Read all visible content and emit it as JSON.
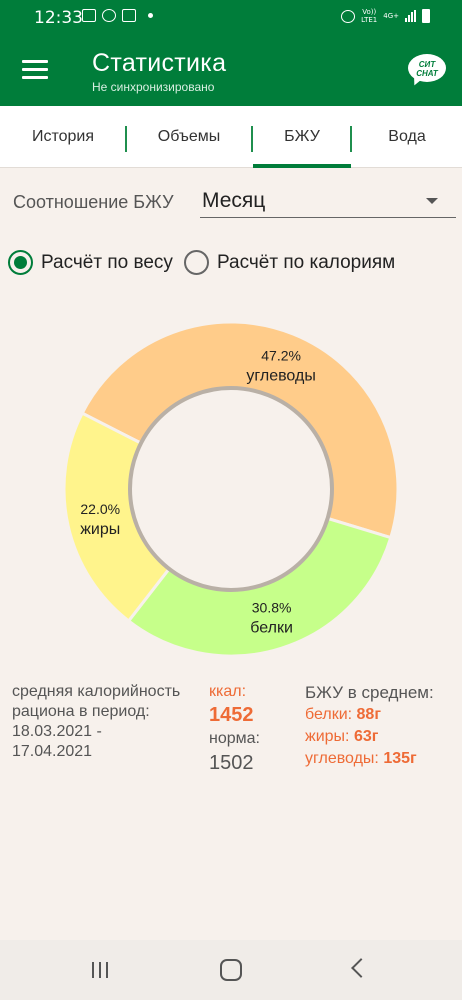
{
  "status_bar": {
    "time": "12:33",
    "network_line1": "Vo))",
    "network_line2": "LTE1",
    "network_type": "4G+"
  },
  "app_bar": {
    "title": "Статистика",
    "subtitle": "Не синхронизировано",
    "chat_line1": "СИТ",
    "chat_line2": "CHAT"
  },
  "tabs": [
    {
      "label": "История",
      "active": false
    },
    {
      "label": "Объемы",
      "active": false
    },
    {
      "label": "БЖУ",
      "active": true
    },
    {
      "label": "Вода",
      "active": false
    }
  ],
  "ratio": {
    "label": "Соотношение БЖУ",
    "period_selected": "Месяц"
  },
  "calc_mode": {
    "by_weight": {
      "label": "Расчёт по весу",
      "selected": true
    },
    "by_calories": {
      "label": "Расчёт по калориям",
      "selected": false
    }
  },
  "chart_data": {
    "type": "pie",
    "style": "donut",
    "categories": [
      "углеводы",
      "белки",
      "жиры"
    ],
    "values": [
      47.2,
      30.8,
      22.0
    ],
    "value_labels": [
      "47.2%",
      "30.8%",
      "22.0%"
    ],
    "colors": [
      "#ffcc8a",
      "#c6ff8a",
      "#fff48c"
    ],
    "start_angle_deg": -153
  },
  "summary": {
    "caloric_line1": "средняя калорийность",
    "caloric_line2": "рациона в период:",
    "period_line1": "18.03.2021 -",
    "period_line2": "17.04.2021",
    "kcal_label": "ккал:",
    "kcal_value": "1452",
    "norm_label": "норма:",
    "norm_value": "1502",
    "avg_title": "БЖУ в среднем:",
    "macros": [
      {
        "name": "белки:",
        "value": "88г"
      },
      {
        "name": "жиры:",
        "value": "63г"
      },
      {
        "name": "углеводы:",
        "value": "135г"
      }
    ]
  }
}
